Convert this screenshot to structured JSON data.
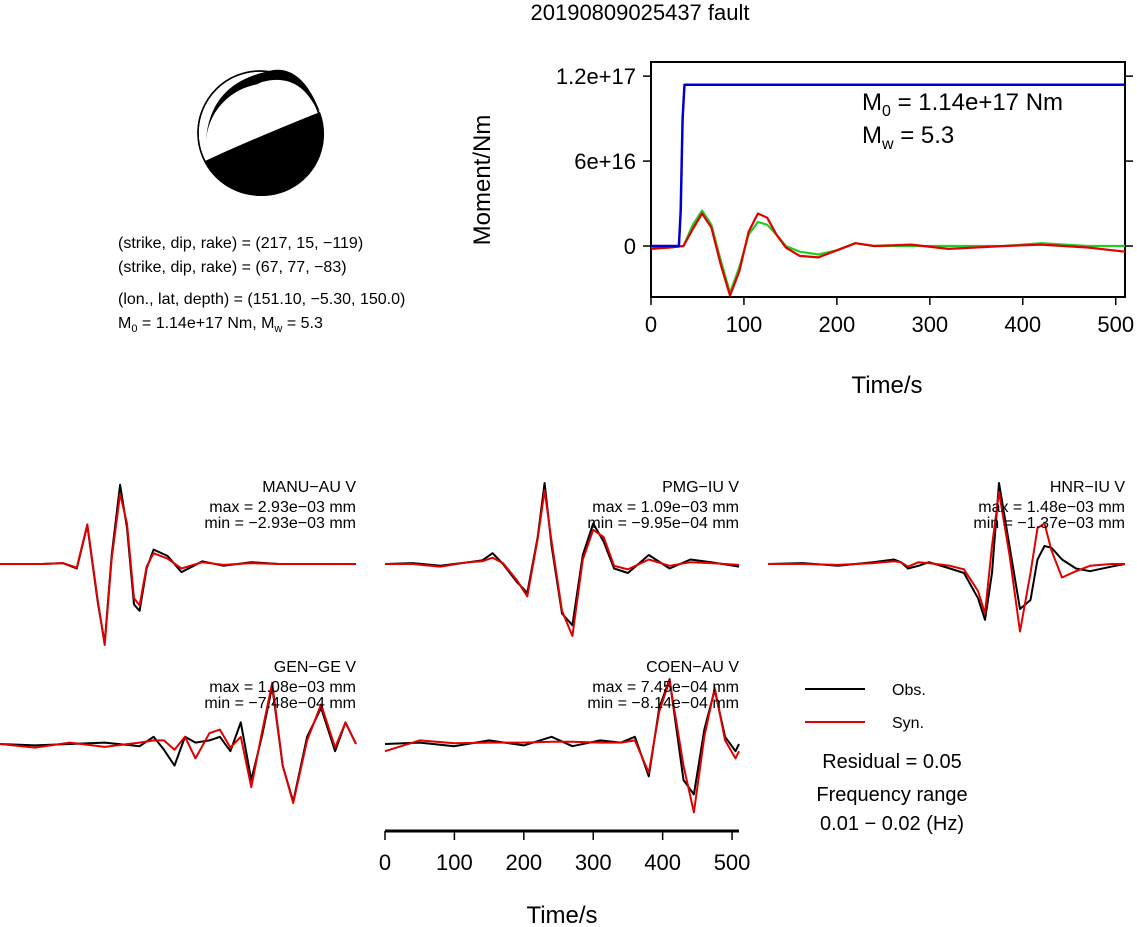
{
  "title": "20190809025437 fault",
  "mechanism": {
    "line1": "(strike, dip, rake) = (217, 15, −119)",
    "line2": "(strike, dip, rake) = (67, 77, −83)",
    "line3": "(lon., lat, depth) = (151.10, −5.30, 150.0)",
    "line4_m0": "M",
    "line4_rest": " = 1.14e+17 Nm, M",
    "line4_mw": " = 5.3",
    "sub0": "0",
    "subw": "w"
  },
  "moment_panel": {
    "ylabel": "Moment/Nm",
    "xlabel": "Time/s",
    "m0_text": " = 1.14e+17 Nm",
    "mw_text": " = 5.3",
    "m_letter": "M",
    "sub0": "0",
    "subw": "w"
  },
  "legend": {
    "obs": "Obs.",
    "syn": "Syn.",
    "residual": "Residual = 0.05",
    "freq_title": "Frequency range",
    "freq_value": "0.01 − 0.02 (Hz)"
  },
  "waveform_xlabel": "Time/s",
  "colors": {
    "obs": "#000000",
    "syn": "#e00000",
    "moment": "#0000cc",
    "stf": "#22cc22"
  },
  "chart_data": [
    {
      "type": "line",
      "title": "",
      "xlabel": "Time/s",
      "ylabel": "Moment/Nm",
      "xlim": [
        0,
        510
      ],
      "ylim": [
        -3.6e+16,
        1.3e+17
      ],
      "xticks": [
        0,
        100,
        200,
        300,
        400,
        500
      ],
      "yticks": [
        0,
        6e+16,
        1.2e+17
      ],
      "ytick_labels": [
        "0",
        "6e+16",
        "1.2e+17"
      ],
      "series": [
        {
          "color": "blue",
          "x": [
            0,
            30,
            32,
            34,
            36,
            510
          ],
          "y": [
            0,
            0,
            2.5e+16,
            9e+16,
            1.14e+17,
            1.14e+17
          ]
        },
        {
          "color": "green",
          "x": [
            0,
            20,
            35,
            45,
            55,
            65,
            75,
            85,
            95,
            105,
            115,
            125,
            135,
            145,
            160,
            180,
            200,
            220,
            240,
            280,
            320,
            380,
            420,
            470,
            510
          ],
          "y": [
            -1000000000000000.0,
            -1000000000000000.0,
            0,
            1.5e+16,
            2.5e+16,
            1.5e+16,
            -1e+16,
            -3.3e+16,
            -1.5e+16,
            8000000000000000.0,
            1.7e+16,
            1.5e+16,
            8000000000000000.0,
            0,
            -4000000000000000.0,
            -6000000000000000.0,
            -3000000000000000.0,
            2000000000000000.0,
            0,
            0,
            0,
            0,
            2000000000000000.0,
            0,
            0
          ]
        },
        {
          "color": "red",
          "x": [
            0,
            20,
            35,
            45,
            55,
            65,
            75,
            85,
            95,
            105,
            115,
            125,
            135,
            145,
            160,
            180,
            200,
            220,
            240,
            280,
            320,
            380,
            420,
            470,
            510
          ],
          "y": [
            -2000000000000000.0,
            -1000000000000000.0,
            0,
            1.2e+16,
            2.3e+16,
            1.3e+16,
            -1.3e+16,
            -3.5e+16,
            -1.8e+16,
            1e+16,
            2.3e+16,
            2e+16,
            8000000000000000.0,
            -1000000000000000.0,
            -7000000000000000.0,
            -8000000000000000.0,
            -3000000000000000.0,
            2000000000000000.0,
            0,
            1000000000000000.0,
            -2000000000000000.0,
            0,
            1000000000000000.0,
            -1000000000000000.0,
            -4000000000000000.0
          ]
        }
      ]
    },
    {
      "type": "line",
      "station": "MANU−AU V",
      "max": "max = 2.93e−03 mm",
      "min": "min = −2.93e−03 mm",
      "xlim": [
        0,
        510
      ],
      "series": [
        {
          "name": "Obs.",
          "x": [
            0,
            60,
            90,
            110,
            125,
            140,
            150,
            160,
            172,
            182,
            192,
            200,
            210,
            220,
            240,
            260,
            290,
            320,
            360,
            400,
            450,
            510
          ],
          "y": [
            0,
            0,
            0.01,
            -0.05,
            0.43,
            -0.42,
            -0.88,
            0.1,
            0.88,
            0.4,
            -0.45,
            -0.52,
            -0.05,
            0.16,
            0.09,
            -0.09,
            0.03,
            -0.02,
            0.02,
            0,
            0,
            0
          ]
        },
        {
          "name": "Syn.",
          "x": [
            0,
            60,
            90,
            110,
            125,
            140,
            150,
            160,
            172,
            182,
            192,
            200,
            210,
            220,
            240,
            260,
            290,
            320,
            360,
            400,
            450,
            510
          ],
          "y": [
            0,
            0,
            0.01,
            -0.04,
            0.44,
            -0.4,
            -0.9,
            0.06,
            0.78,
            0.45,
            -0.38,
            -0.46,
            -0.03,
            0.12,
            0.06,
            -0.05,
            0.02,
            -0.01,
            0.01,
            0,
            0,
            0
          ]
        }
      ]
    },
    {
      "type": "line",
      "station": "PMG−IU V",
      "max": "max = 1.09e−03 mm",
      "min": "min = −9.95e−04 mm",
      "xlim": [
        0,
        510
      ],
      "series": [
        {
          "name": "Obs.",
          "x": [
            0,
            40,
            80,
            120,
            140,
            155,
            170,
            190,
            205,
            220,
            230,
            240,
            255,
            270,
            285,
            300,
            315,
            330,
            350,
            380,
            410,
            440,
            470,
            510
          ],
          "y": [
            0,
            0.01,
            -0.02,
            0.02,
            0.04,
            0.12,
            0,
            -0.2,
            -0.32,
            0.3,
            0.9,
            0.2,
            -0.55,
            -0.68,
            0.1,
            0.45,
            0.25,
            -0.05,
            -0.1,
            0.1,
            -0.05,
            0.05,
            0.02,
            -0.03
          ]
        },
        {
          "name": "Syn.",
          "x": [
            0,
            40,
            80,
            120,
            140,
            155,
            170,
            190,
            205,
            220,
            230,
            240,
            255,
            270,
            285,
            300,
            315,
            330,
            350,
            380,
            410,
            440,
            470,
            510
          ],
          "y": [
            0,
            0,
            -0.03,
            0.02,
            0.03,
            0.07,
            0.01,
            -0.18,
            -0.36,
            0.28,
            0.82,
            0.25,
            -0.52,
            -0.8,
            0.05,
            0.38,
            0.3,
            -0.02,
            -0.06,
            0.05,
            -0.02,
            0.02,
            0.01,
            -0.01
          ]
        }
      ]
    },
    {
      "type": "line",
      "station": "HNR−IU V",
      "max": "max = 1.48e−03 mm",
      "min": "min = −1.37e−03 mm",
      "xlim": [
        0,
        510
      ],
      "series": [
        {
          "name": "Obs.",
          "x": [
            0,
            50,
            100,
            150,
            180,
            190,
            200,
            215,
            230,
            260,
            280,
            300,
            310,
            320,
            330,
            345,
            360,
            375,
            385,
            395,
            405,
            420,
            440,
            460,
            490,
            510
          ],
          "y": [
            0,
            0.01,
            -0.02,
            0.02,
            0.05,
            0.02,
            -0.05,
            -0.02,
            0.02,
            -0.05,
            -0.1,
            -0.38,
            -0.62,
            -0.1,
            0.9,
            0.2,
            -0.5,
            -0.4,
            0.05,
            0.2,
            0.18,
            0.05,
            -0.05,
            -0.08,
            -0.03,
            0
          ]
        },
        {
          "name": "Syn.",
          "x": [
            0,
            50,
            100,
            150,
            180,
            190,
            200,
            215,
            230,
            260,
            280,
            300,
            310,
            320,
            330,
            345,
            360,
            375,
            385,
            395,
            405,
            420,
            440,
            460,
            490,
            510
          ],
          "y": [
            0,
            0,
            -0.01,
            0.01,
            0.03,
            0.02,
            -0.03,
            0.02,
            0.01,
            -0.02,
            -0.06,
            -0.3,
            -0.55,
            0.2,
            0.8,
            0.1,
            -0.75,
            -0.1,
            0.4,
            0.45,
            0.15,
            -0.15,
            -0.08,
            -0.02,
            0,
            0
          ]
        }
      ]
    },
    {
      "type": "line",
      "station": "GEN−GE V",
      "max": "max = 1.08e−03 mm",
      "min": "min = −7.48e−04 mm",
      "xlim": [
        0,
        510
      ],
      "series": [
        {
          "name": "Obs.",
          "x": [
            0,
            50,
            100,
            150,
            200,
            220,
            235,
            250,
            265,
            280,
            300,
            315,
            330,
            345,
            360,
            375,
            390,
            405,
            420,
            440,
            460,
            480,
            495,
            510
          ],
          "y": [
            0,
            -0.02,
            0,
            0.02,
            -0.03,
            0.1,
            -0.08,
            -0.3,
            0.1,
            0.02,
            0.05,
            0.1,
            -0.1,
            0.3,
            -0.5,
            0.1,
            0.8,
            -0.3,
            -0.8,
            0.1,
            0.5,
            -0.1,
            0.3,
            0
          ]
        },
        {
          "name": "Syn.",
          "x": [
            0,
            50,
            100,
            150,
            200,
            220,
            235,
            250,
            265,
            280,
            300,
            315,
            330,
            345,
            360,
            375,
            390,
            405,
            420,
            440,
            460,
            480,
            495,
            510
          ],
          "y": [
            0,
            -0.05,
            0.02,
            -0.04,
            0.02,
            0.05,
            0.05,
            -0.08,
            0.1,
            -0.2,
            0.15,
            0.2,
            -0.05,
            0.1,
            -0.6,
            0.15,
            0.85,
            -0.3,
            -0.82,
            0.05,
            0.55,
            -0.05,
            0.3,
            0
          ]
        }
      ]
    },
    {
      "type": "line",
      "station": "COEN−AU V",
      "max": "max = 7.45e−04 mm",
      "min": "min = −8.14e−04 mm",
      "xlim": [
        0,
        510
      ],
      "series": [
        {
          "name": "Obs.",
          "x": [
            0,
            50,
            100,
            150,
            200,
            240,
            270,
            310,
            340,
            360,
            380,
            395,
            410,
            430,
            445,
            460,
            475,
            490,
            505,
            510
          ],
          "y": [
            0,
            0.02,
            -0.03,
            0.05,
            -0.02,
            0.1,
            -0.03,
            0.05,
            0.02,
            0.1,
            -0.45,
            0.5,
            0.9,
            -0.5,
            -0.7,
            0.2,
            0.75,
            0.1,
            -0.1,
            0
          ]
        },
        {
          "name": "Syn.",
          "x": [
            0,
            50,
            100,
            150,
            200,
            240,
            270,
            310,
            340,
            360,
            380,
            395,
            410,
            430,
            445,
            460,
            475,
            490,
            505,
            510
          ],
          "y": [
            -0.1,
            0.05,
            0.01,
            0.02,
            0.02,
            0.03,
            0.03,
            0.02,
            0.02,
            0.05,
            -0.4,
            0.45,
            0.88,
            -0.3,
            -0.95,
            0.1,
            0.78,
            0.05,
            -0.2,
            -0.1
          ]
        }
      ]
    }
  ]
}
